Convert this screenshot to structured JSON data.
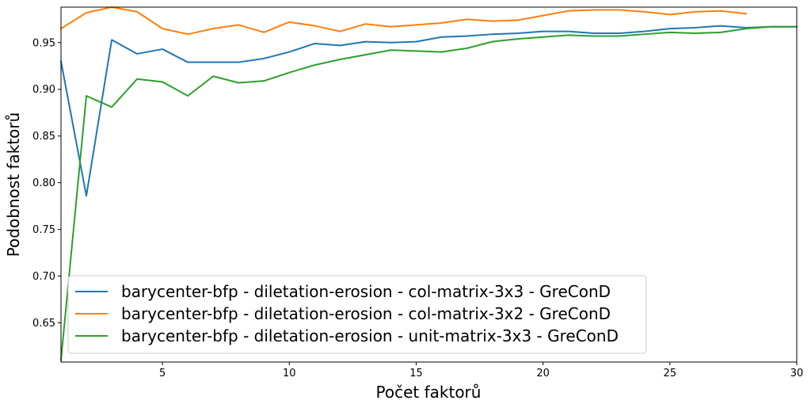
{
  "chart_data": {
    "type": "line",
    "xlabel": "Počet faktorů",
    "ylabel": "Podobnost faktorů",
    "xlim": [
      1,
      30
    ],
    "ylim": [
      0.608,
      0.988
    ],
    "xticks": [
      5,
      10,
      15,
      20,
      25,
      30
    ],
    "yticks": [
      0.65,
      0.7,
      0.75,
      0.8,
      0.85,
      0.9,
      0.95
    ],
    "grid": false,
    "legend_position": "lower-left",
    "series": [
      {
        "name": "barycenter-bfp - diletation-erosion - col-matrix-3x3 - GreConD",
        "color": "#1f77b4",
        "x": [
          1,
          2,
          3,
          4,
          5,
          6,
          7,
          8,
          9,
          10,
          11,
          12,
          13,
          14,
          15,
          16,
          17,
          18,
          19,
          20,
          21,
          22,
          23,
          24,
          25,
          26,
          27,
          28,
          29,
          30
        ],
        "values": [
          0.93,
          0.786,
          0.953,
          0.938,
          0.943,
          0.929,
          0.929,
          0.929,
          0.933,
          0.94,
          0.949,
          0.947,
          0.951,
          0.95,
          0.951,
          0.956,
          0.957,
          0.959,
          0.96,
          0.962,
          0.962,
          0.96,
          0.96,
          0.962,
          0.965,
          0.966,
          0.968,
          0.966,
          0.967,
          0.967
        ]
      },
      {
        "name": "barycenter-bfp - diletation-erosion - col-matrix-3x2 - GreConD",
        "color": "#ff7f0e",
        "x": [
          1,
          2,
          3,
          4,
          5,
          6,
          7,
          8,
          9,
          10,
          11,
          12,
          13,
          14,
          15,
          16,
          17,
          18,
          19,
          20,
          21,
          22,
          23,
          24,
          25,
          26,
          27,
          28
        ],
        "values": [
          0.965,
          0.982,
          0.988,
          0.983,
          0.965,
          0.959,
          0.965,
          0.969,
          0.961,
          0.972,
          0.968,
          0.962,
          0.97,
          0.967,
          0.969,
          0.971,
          0.975,
          0.973,
          0.974,
          0.979,
          0.984,
          0.985,
          0.985,
          0.983,
          0.98,
          0.983,
          0.984,
          0.981
        ]
      },
      {
        "name": "barycenter-bfp - diletation-erosion - unit-matrix-3x3 - GreConD",
        "color": "#2ca02c",
        "x": [
          1,
          2,
          3,
          4,
          5,
          6,
          7,
          8,
          9,
          10,
          11,
          12,
          13,
          14,
          15,
          16,
          17,
          18,
          19,
          20,
          21,
          22,
          23,
          24,
          25,
          26,
          27,
          28,
          29,
          30
        ],
        "values": [
          0.61,
          0.893,
          0.881,
          0.911,
          0.908,
          0.893,
          0.914,
          0.907,
          0.909,
          0.918,
          0.926,
          0.932,
          0.937,
          0.942,
          0.941,
          0.94,
          0.944,
          0.951,
          0.954,
          0.956,
          0.958,
          0.957,
          0.957,
          0.959,
          0.961,
          0.96,
          0.961,
          0.965,
          0.967,
          0.967
        ]
      }
    ]
  }
}
